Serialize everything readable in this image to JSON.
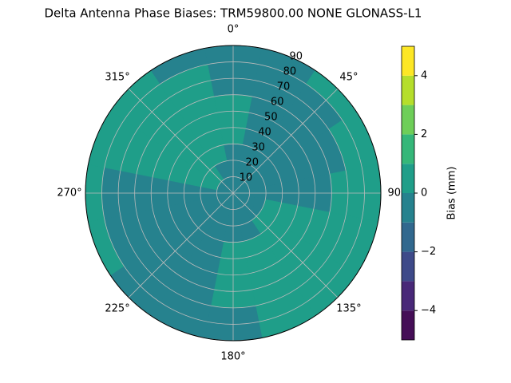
{
  "chart_data": {
    "type": "polar-contour",
    "title": "Delta Antenna Phase Biases: TRM59800.00     NONE GLONASS-L1",
    "colorbar_label": "Bias (mm)",
    "azimuths": [
      0,
      22.5,
      45,
      67.5,
      90,
      112.5,
      135,
      157.5,
      180,
      202.5,
      225,
      247.5,
      270,
      292.5,
      315,
      337.5
    ],
    "rings": [
      0,
      10,
      20,
      30,
      40,
      50,
      60,
      70,
      80,
      90
    ],
    "values": [
      [
        -0.5,
        -0.5,
        -0.5,
        0.5,
        0.5,
        0.5,
        -0.5,
        -0.5,
        -0.5
      ],
      [
        -0.5,
        -0.5,
        -0.5,
        -0.5,
        -0.5,
        -0.5,
        -0.5,
        -0.5,
        -0.5
      ],
      [
        -0.5,
        -0.5,
        -0.5,
        -0.5,
        -0.5,
        -0.5,
        -0.5,
        -0.5,
        0.5
      ],
      [
        -0.5,
        -0.5,
        -0.5,
        -0.5,
        -0.5,
        -0.5,
        -0.5,
        0.5,
        0.5
      ],
      [
        -0.5,
        -0.5,
        -0.5,
        -0.5,
        -0.5,
        -0.5,
        0.5,
        0.5,
        0.5
      ],
      [
        -0.5,
        -0.5,
        0.5,
        0.5,
        0.5,
        0.5,
        0.5,
        0.5,
        0.5
      ],
      [
        -0.5,
        -0.5,
        0.5,
        0.5,
        0.5,
        0.5,
        0.5,
        0.5,
        0.5
      ],
      [
        -0.5,
        -0.5,
        -0.5,
        0.5,
        0.5,
        0.5,
        0.5,
        0.5,
        0.5
      ],
      [
        -0.5,
        -0.5,
        -0.5,
        0.5,
        0.5,
        0.5,
        0.5,
        -0.5,
        -0.5
      ],
      [
        -0.5,
        -0.5,
        -0.5,
        -0.5,
        -0.5,
        -0.5,
        -0.5,
        -0.5,
        -0.5
      ],
      [
        -0.5,
        -0.5,
        -0.5,
        -0.5,
        -0.5,
        -0.5,
        -0.5,
        -0.5,
        -0.5
      ],
      [
        -0.5,
        -0.5,
        -0.5,
        -0.5,
        -0.5,
        -0.5,
        -0.5,
        -0.5,
        0.5
      ],
      [
        -0.5,
        -0.5,
        -0.5,
        -0.5,
        -0.5,
        -0.5,
        -0.5,
        -0.5,
        0.5
      ],
      [
        -0.5,
        0.5,
        0.5,
        0.5,
        0.5,
        0.5,
        0.5,
        0.5,
        0.5
      ],
      [
        -0.5,
        0.5,
        0.5,
        0.5,
        0.5,
        0.5,
        0.5,
        0.5,
        0.5
      ],
      [
        -0.5,
        -0.5,
        0.5,
        0.5,
        0.5,
        0.5,
        0.5,
        0.5,
        -0.5
      ]
    ],
    "levels": [
      -5,
      -4,
      -3,
      -2,
      -1,
      0,
      1,
      2,
      3,
      4,
      5
    ],
    "colors": [
      "#450e57",
      "#482878",
      "#3e4a89",
      "#31688e",
      "#26828e",
      "#1f9e89",
      "#35b779",
      "#6ece58",
      "#b5de2b",
      "#fde725"
    ],
    "clim": [
      -5,
      5
    ],
    "cticks": [
      {
        "value": -4,
        "label": "−4"
      },
      {
        "value": -2,
        "label": "−2"
      },
      0,
      2,
      4
    ],
    "rlim": [
      0,
      90
    ],
    "rticks": [
      10,
      20,
      30,
      40,
      50,
      60,
      70,
      80,
      90
    ],
    "thetaticks": [
      {
        "value": 0,
        "label": "0°"
      },
      {
        "value": 45,
        "label": "45°"
      },
      {
        "value": 90,
        "label": "90°"
      },
      {
        "value": 135,
        "label": "135°"
      },
      {
        "value": 180,
        "label": "180°"
      },
      {
        "value": 225,
        "label": "225°"
      },
      {
        "value": 270,
        "label": "270°"
      },
      {
        "value": 315,
        "label": "315°"
      }
    ],
    "grid": true
  }
}
